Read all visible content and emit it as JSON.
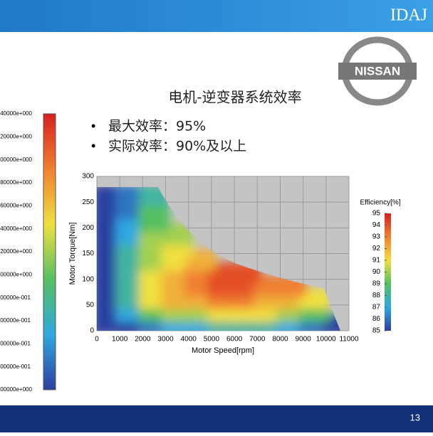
{
  "header": {
    "logo": "IDAJ"
  },
  "brand_logo": "NISSAN",
  "slide": {
    "title": "电机-逆变器系统效率",
    "bullets": [
      "最大效率：95%",
      "实际效率：90%及以上"
    ],
    "page_number": "13"
  },
  "left_colorbar": {
    "labels": [
      ".40000e+000",
      ".20000e+000",
      ".00000e+000",
      ".80000e+000",
      ".60000e+000",
      ".40000e+000",
      ".20000e+000",
      ".00000e+000",
      ".00000e-001",
      ".00000e-001",
      ".00000e-001",
      ".00000e-001",
      ".00000e+000"
    ]
  },
  "chart_data": {
    "type": "heatmap",
    "x_label": "Motor Speed[rpm]",
    "y_label": "Motor Torque[Nm]",
    "xlim": [
      0,
      11000
    ],
    "xticks": [
      0,
      1000,
      2000,
      3000,
      4000,
      5000,
      6000,
      7000,
      8000,
      9000,
      10000,
      11000
    ],
    "ylim": [
      0,
      300
    ],
    "yticks": [
      0,
      50,
      100,
      150,
      200,
      250,
      300
    ],
    "colorbar_title": "Efficiency[%]",
    "clim": [
      85,
      95
    ],
    "cticks": [
      85,
      86,
      87,
      88,
      89,
      90,
      91,
      92,
      93,
      94,
      95
    ],
    "x": [
      500,
      1500,
      2500,
      3500,
      4500,
      5500,
      6500,
      7500,
      8500,
      9500,
      10500
    ],
    "y": [
      12.5,
      37.5,
      62.5,
      87.5,
      112.5,
      137.5,
      162.5,
      187.5,
      212.5,
      237.5,
      262.5
    ],
    "z": [
      [
        85,
        85,
        86,
        87,
        87,
        88,
        88,
        88,
        87,
        86,
        85
      ],
      [
        85,
        87,
        89,
        90,
        90,
        91,
        91,
        91,
        90,
        89,
        null
      ],
      [
        85,
        88,
        91,
        92,
        92,
        93,
        93,
        92,
        92,
        91,
        null
      ],
      [
        85,
        88,
        91,
        92,
        93,
        94,
        94,
        93,
        93,
        null,
        null
      ],
      [
        85,
        88,
        91,
        92,
        93,
        94,
        94,
        null,
        null,
        null,
        null
      ],
      [
        85,
        88,
        90,
        91,
        92,
        null,
        null,
        null,
        null,
        null,
        null
      ],
      [
        85,
        88,
        90,
        91,
        null,
        null,
        null,
        null,
        null,
        null,
        null
      ],
      [
        85,
        87,
        90,
        90,
        null,
        null,
        null,
        null,
        null,
        null,
        null
      ],
      [
        85,
        87,
        89,
        null,
        null,
        null,
        null,
        null,
        null,
        null,
        null
      ],
      [
        85,
        86,
        89,
        null,
        null,
        null,
        null,
        null,
        null,
        null,
        null
      ],
      [
        85,
        86,
        88,
        null,
        null,
        null,
        null,
        null,
        null,
        null,
        null
      ]
    ]
  }
}
